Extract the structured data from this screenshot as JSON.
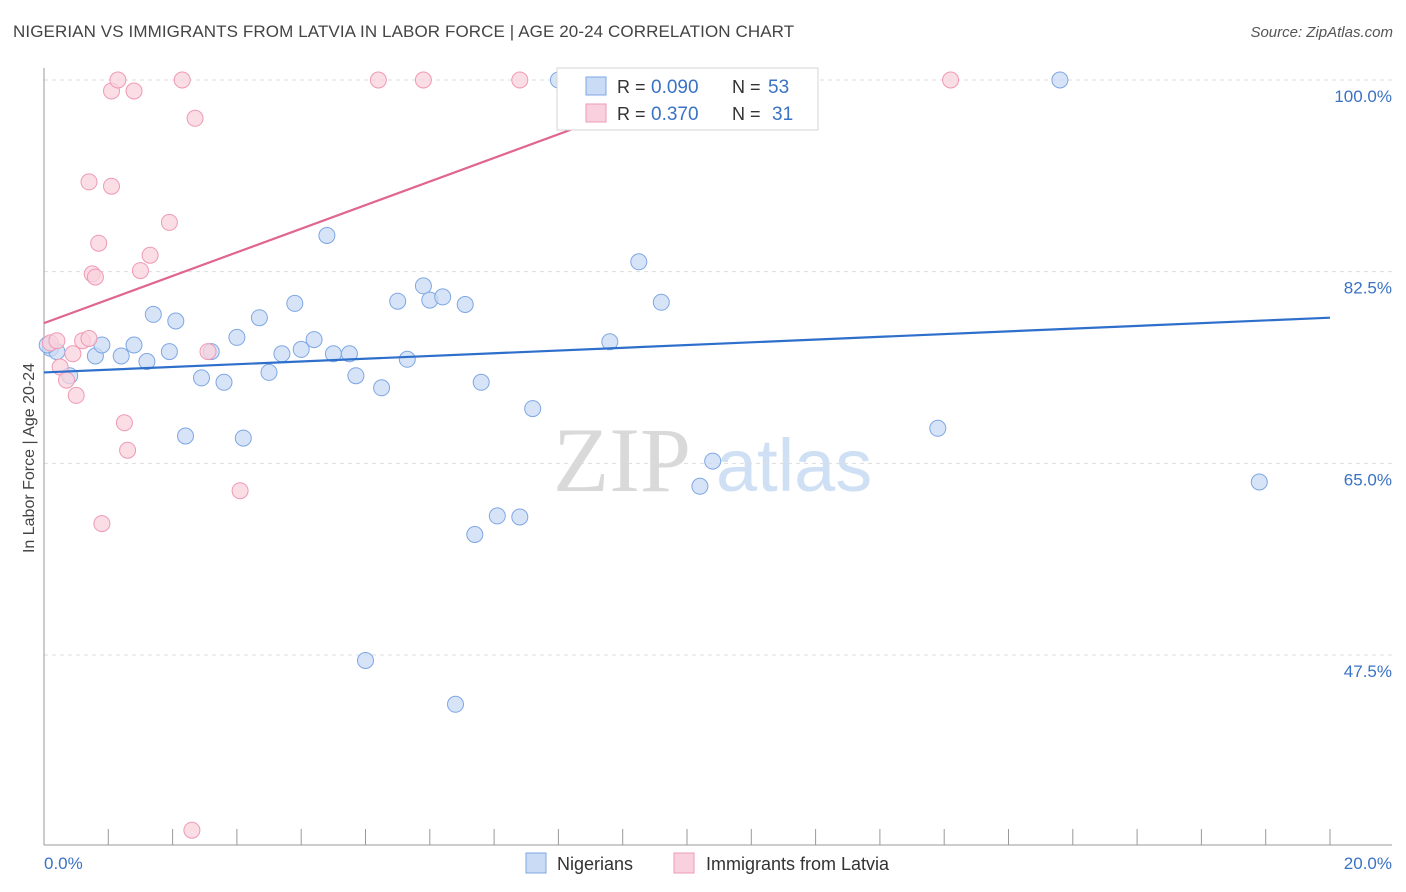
{
  "title": "NIGERIAN VS IMMIGRANTS FROM LATVIA IN LABOR FORCE | AGE 20-24 CORRELATION CHART",
  "source": "Source: ZipAtlas.com",
  "watermark": {
    "zip": "ZIP",
    "atlas": "atlas"
  },
  "colors": {
    "blue_fill": "#c9dbf5",
    "blue_stroke": "#7ea7e3",
    "blue_line": "#2e6fcc",
    "pink_fill": "#f9d1de",
    "pink_stroke": "#ee9ab5",
    "pink_line": "#e0668f",
    "axis_text": "#3a72c4",
    "grid": "#dddddd"
  },
  "legend_top": {
    "rows": [
      {
        "r_label": "R =",
        "r_value": "0.090",
        "n_label": "N =",
        "n_value": "53"
      },
      {
        "r_label": "R =",
        "r_value": "0.370",
        "n_label": "N =",
        "n_value": "31"
      }
    ]
  },
  "chart_data": {
    "type": "scatter",
    "title": "NIGERIAN VS IMMIGRANTS FROM LATVIA IN LABOR FORCE | AGE 20-24 CORRELATION CHART",
    "xlabel": "",
    "ylabel": "In Labor Force | Age 20-24",
    "xlim": [
      0,
      20
    ],
    "ylim": [
      32,
      102
    ],
    "x_tick_labels": [
      "0.0%",
      "20.0%"
    ],
    "y_ticks": [
      47.5,
      65.0,
      82.5,
      100.0
    ],
    "y_tick_labels": [
      "47.5%",
      "65.0%",
      "82.5%",
      "100.0%"
    ],
    "grid": true,
    "legend_position": "bottom-center",
    "series": [
      {
        "name": "Nigerians",
        "color": "#7ea7e3",
        "trend": {
          "x": [
            0,
            20
          ],
          "y": [
            73.3,
            78.3
          ]
        },
        "points": [
          [
            0.1,
            75.5
          ],
          [
            0.2,
            75.2
          ],
          [
            0.4,
            73.0
          ],
          [
            0.8,
            74.8
          ],
          [
            0.9,
            75.8
          ],
          [
            1.2,
            74.8
          ],
          [
            1.4,
            75.8
          ],
          [
            1.6,
            74.3
          ],
          [
            1.7,
            78.6
          ],
          [
            1.95,
            75.2
          ],
          [
            2.05,
            78.0
          ],
          [
            2.2,
            67.5
          ],
          [
            2.45,
            72.8
          ],
          [
            2.6,
            75.2
          ],
          [
            2.8,
            72.4
          ],
          [
            3.0,
            76.5
          ],
          [
            3.1,
            67.3
          ],
          [
            3.35,
            78.3
          ],
          [
            3.5,
            73.3
          ],
          [
            3.7,
            75.0
          ],
          [
            3.9,
            79.6
          ],
          [
            4.0,
            75.4
          ],
          [
            4.2,
            76.3
          ],
          [
            4.4,
            85.8
          ],
          [
            4.5,
            75.0
          ],
          [
            4.75,
            75.0
          ],
          [
            4.85,
            73.0
          ],
          [
            5.0,
            47.0
          ],
          [
            5.25,
            71.9
          ],
          [
            5.5,
            79.8
          ],
          [
            5.65,
            74.5
          ],
          [
            5.9,
            81.2
          ],
          [
            6.0,
            79.9
          ],
          [
            6.2,
            80.2
          ],
          [
            6.4,
            43.0
          ],
          [
            6.55,
            79.5
          ],
          [
            6.7,
            58.5
          ],
          [
            6.8,
            72.4
          ],
          [
            7.05,
            60.2
          ],
          [
            7.4,
            60.1
          ],
          [
            7.6,
            70.0
          ],
          [
            8.0,
            100.0
          ],
          [
            8.8,
            76.1
          ],
          [
            9.0,
            100.0
          ],
          [
            9.25,
            83.4
          ],
          [
            9.6,
            79.7
          ],
          [
            10.2,
            62.9
          ],
          [
            10.4,
            65.2
          ],
          [
            11.0,
            100.0
          ],
          [
            13.9,
            68.2
          ],
          [
            15.8,
            100.0
          ],
          [
            18.9,
            63.3
          ],
          [
            0.05,
            75.8
          ]
        ]
      },
      {
        "name": "Immigrants from Latvia",
        "color": "#ee9ab5",
        "trend": {
          "x": [
            0,
            10.3
          ],
          "y": [
            77.8,
            100.0
          ]
        },
        "points": [
          [
            0.1,
            76.0
          ],
          [
            0.25,
            73.8
          ],
          [
            0.35,
            72.6
          ],
          [
            0.45,
            75.0
          ],
          [
            0.5,
            71.2
          ],
          [
            0.6,
            76.2
          ],
          [
            0.7,
            76.4
          ],
          [
            0.7,
            90.7
          ],
          [
            0.75,
            82.3
          ],
          [
            0.8,
            82.0
          ],
          [
            0.85,
            85.1
          ],
          [
            0.9,
            59.5
          ],
          [
            1.05,
            99.0
          ],
          [
            1.05,
            90.3
          ],
          [
            1.15,
            100.0
          ],
          [
            1.25,
            68.7
          ],
          [
            1.3,
            66.2
          ],
          [
            1.4,
            99.0
          ],
          [
            1.5,
            82.6
          ],
          [
            1.65,
            84.0
          ],
          [
            1.95,
            87.0
          ],
          [
            2.15,
            100.0
          ],
          [
            2.35,
            96.5
          ],
          [
            2.55,
            75.2
          ],
          [
            3.05,
            62.5
          ],
          [
            5.2,
            100.0
          ],
          [
            5.9,
            100.0
          ],
          [
            7.4,
            100.0
          ],
          [
            14.1,
            100.0
          ],
          [
            2.3,
            31.5
          ],
          [
            0.2,
            76.2
          ]
        ]
      }
    ]
  }
}
